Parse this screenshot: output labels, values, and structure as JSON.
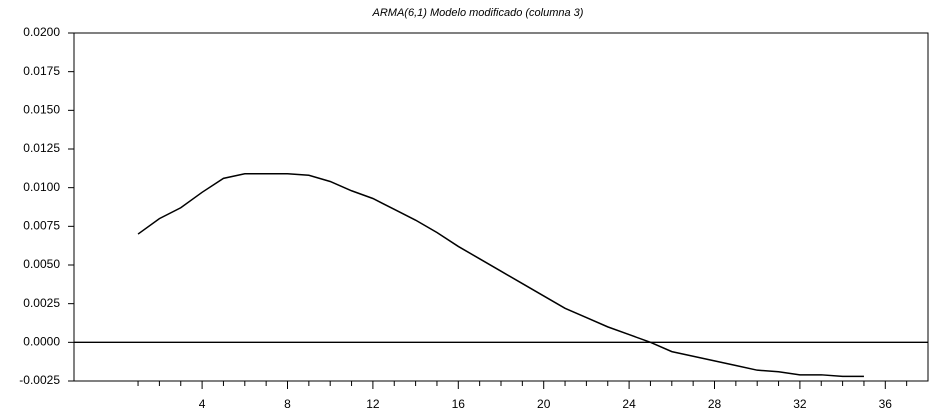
{
  "chart_data": {
    "type": "line",
    "title": "ARMA(6,1) Modelo modificado (columna 3)",
    "x": [
      1,
      2,
      3,
      4,
      5,
      6,
      7,
      8,
      9,
      10,
      11,
      12,
      13,
      14,
      15,
      16,
      17,
      18,
      19,
      20,
      21,
      22,
      23,
      24,
      25,
      26,
      27,
      28,
      29,
      30,
      31,
      32,
      33,
      34,
      35
    ],
    "series": [
      {
        "color": "#000000",
        "values": [
          0.007,
          0.008,
          0.0087,
          0.0097,
          0.0106,
          0.0109,
          0.0109,
          0.0109,
          0.0108,
          0.0104,
          0.0098,
          0.0093,
          0.0086,
          0.0079,
          0.0071,
          0.0062,
          0.0054,
          0.0046,
          0.0038,
          0.003,
          0.0022,
          0.0016,
          0.001,
          0.0005,
          0.0,
          -0.0006,
          -0.0009,
          -0.0012,
          -0.0015,
          -0.0018,
          -0.0019,
          -0.0021,
          -0.0021,
          -0.0022,
          -0.0022
        ]
      }
    ],
    "xlim": [
      -2,
      38
    ],
    "xticks": [
      4,
      8,
      12,
      16,
      20,
      24,
      28,
      32,
      36
    ],
    "xminorticks": [
      1,
      2,
      3,
      5,
      6,
      7,
      9,
      10,
      11,
      13,
      14,
      15,
      17,
      18,
      19,
      21,
      22,
      23,
      25,
      26,
      27,
      29,
      30,
      31,
      33,
      34,
      35,
      37
    ],
    "ylim": [
      -0.0025,
      0.02
    ],
    "yticks": [
      {
        "value": -0.0025,
        "label": "-0.0025"
      },
      {
        "value": 0,
        "label": "0.0000"
      },
      {
        "value": 0.0025,
        "label": "0.0025"
      },
      {
        "value": 0.005,
        "label": "0.0050"
      },
      {
        "value": 0.0075,
        "label": "0.0075"
      },
      {
        "value": 0.01,
        "label": "0.0100"
      },
      {
        "value": 0.0125,
        "label": "0.0125"
      },
      {
        "value": 0.015,
        "label": "0.0150"
      },
      {
        "value": 0.0175,
        "label": "0.0175"
      },
      {
        "value": 0.02,
        "label": "0.0200"
      }
    ],
    "zero_line": true
  }
}
